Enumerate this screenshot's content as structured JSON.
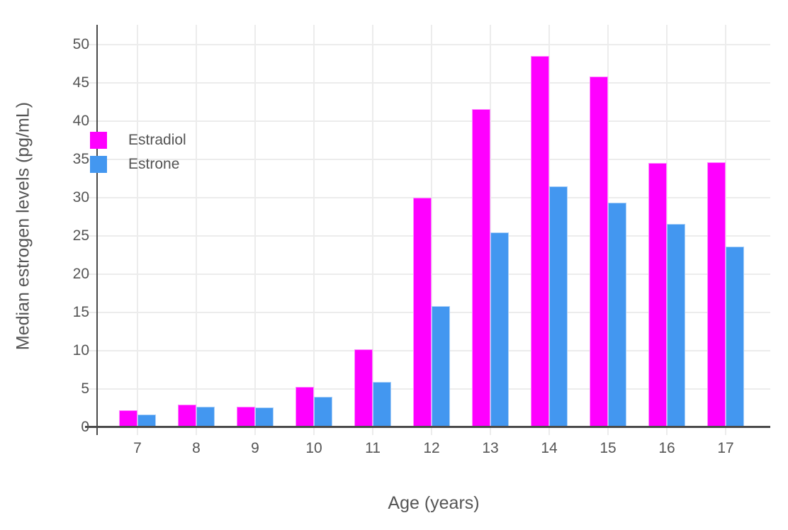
{
  "chart_data": {
    "type": "bar",
    "title": "",
    "xlabel": "Age (years)",
    "ylabel": "Median estrogen levels (pg/mL)",
    "categories": [
      "7",
      "8",
      "9",
      "10",
      "11",
      "12",
      "13",
      "14",
      "15",
      "16",
      "17"
    ],
    "series": [
      {
        "name": "Estradiol",
        "color": "#FF00FF",
        "values": [
          2.2,
          3.0,
          2.7,
          5.3,
          10.2,
          30.0,
          41.6,
          48.5,
          45.8,
          34.5,
          34.6
        ]
      },
      {
        "name": "Estrone",
        "color": "#4397F0",
        "values": [
          1.7,
          2.7,
          2.6,
          4.0,
          5.9,
          15.8,
          25.5,
          31.5,
          29.4,
          26.6,
          23.6
        ]
      }
    ],
    "yticks": [
      0,
      5,
      10,
      15,
      20,
      25,
      30,
      35,
      40,
      45,
      50
    ],
    "ylim": [
      0,
      52.6
    ],
    "grid": true,
    "legend_position": "inside-top-left",
    "colors": {
      "grid": "#ECECEC",
      "axis_line": "#4A4A4A",
      "tick_label": "#555555",
      "axis_title": "#555555",
      "background": "#FFFFFF"
    }
  }
}
